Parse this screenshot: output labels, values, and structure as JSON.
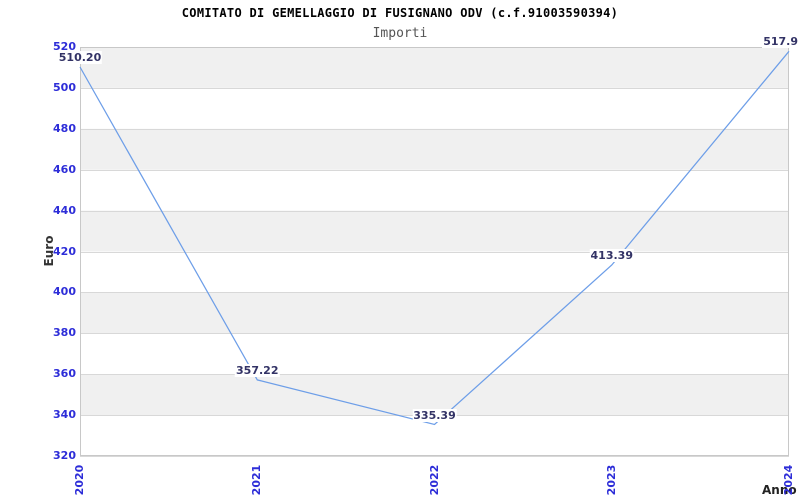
{
  "chart_data": {
    "type": "line",
    "title": "COMITATO DI GEMELLAGGIO DI FUSIGNANO ODV (c.f.91003590394)",
    "subtitle": "Importi",
    "xlabel": "Anno",
    "ylabel": "Euro",
    "categories": [
      "2020",
      "2021",
      "2022",
      "2023",
      "2024"
    ],
    "series": [
      {
        "name": "Importi",
        "values": [
          510.2,
          357.22,
          335.39,
          413.39,
          517.9
        ]
      }
    ],
    "point_labels": [
      "510.20",
      "357.22",
      "335.39",
      "413.39",
      "517.9"
    ],
    "ylim": [
      320,
      520
    ],
    "yticks": [
      320,
      340,
      360,
      380,
      400,
      420,
      440,
      460,
      480,
      500,
      520
    ],
    "grid": "horizontal",
    "legend": "none",
    "band_fill": "alternating-horizontal",
    "colors": {
      "line": "#6d9ee8",
      "tick_label": "#2d2dd8",
      "data_label": "#333366",
      "band": "#f0f0f0",
      "gridline": "#d8d8d8",
      "plot_border": "#c8c8c8",
      "title": "#000000",
      "subtitle": "#555555",
      "axis_title": "#333333",
      "background": "#ffffff"
    }
  }
}
